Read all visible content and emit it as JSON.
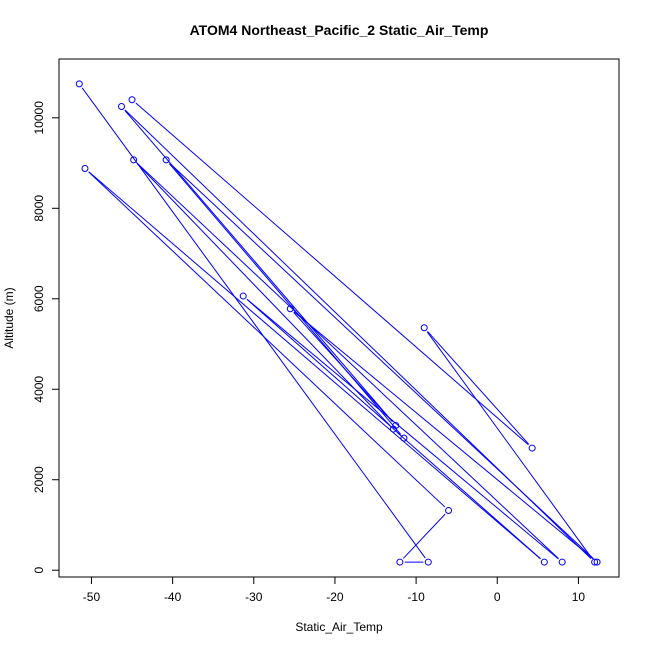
{
  "chart_data": {
    "type": "line",
    "title": "ATOM4 Northeast_Pacific_2 Static_Air_Temp",
    "xlabel": "Static_Air_Temp",
    "ylabel": "Altitude (m)",
    "xlim": [
      -54,
      15
    ],
    "ylim": [
      -150,
      11300
    ],
    "xticks": [
      -50,
      -40,
      -30,
      -20,
      -10,
      0,
      10
    ],
    "xtick_labels": [
      "-50",
      "-40",
      "-30",
      "-20",
      "-10",
      "0",
      "10"
    ],
    "yticks": [
      0,
      2000,
      4000,
      6000,
      8000,
      10000
    ],
    "ytick_labels": [
      "0",
      "2000",
      "4000",
      "6000",
      "8000",
      "10000"
    ],
    "grid": false,
    "legend": false,
    "series": [
      {
        "color": "#0000ff",
        "marker": "open-circle",
        "x": [
          -51.5,
          -8.5,
          -12.0,
          -6.0,
          -50.8,
          5.8,
          -12.8,
          -44.8,
          8.0,
          -31.3,
          -11.5,
          -40.8,
          12.3,
          -25.5,
          -12.5,
          -46.3,
          12.0,
          -9.0,
          4.3,
          -45.0
        ],
        "y": [
          10750,
          180,
          180,
          1320,
          8880,
          180,
          3120,
          9070,
          180,
          6060,
          2920,
          9070,
          180,
          5780,
          3200,
          10250,
          180,
          5360,
          2700,
          10400
        ]
      }
    ]
  }
}
